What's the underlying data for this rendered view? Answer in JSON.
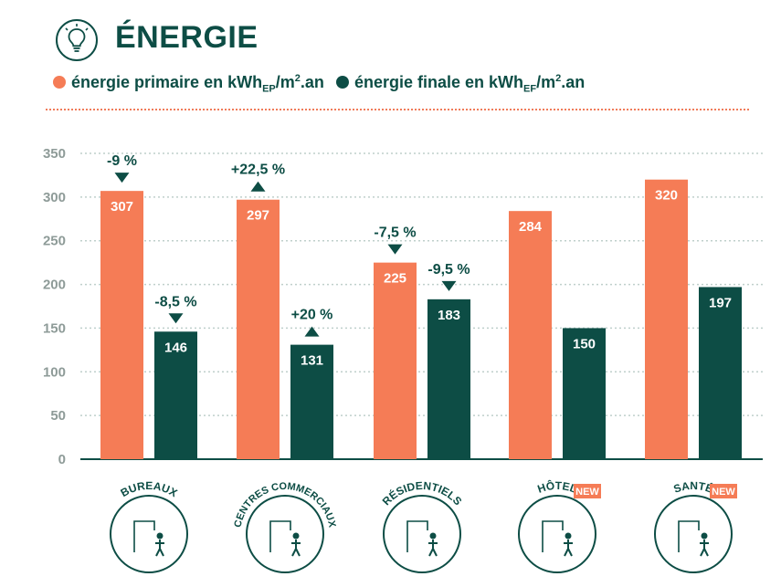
{
  "header": {
    "title": "ÉNERGIE",
    "icon": "lightbulb-icon"
  },
  "legend": {
    "primary": {
      "text": "énergie primaire en kWh",
      "sub": "EP",
      "tail": "/m",
      "sup": "2",
      "end": ".an",
      "color": "#f57c56"
    },
    "final": {
      "text": "énergie finale en kWh",
      "sub": "EF",
      "tail": "/m",
      "sup": "2",
      "end": ".an",
      "color": "#0d4d45"
    }
  },
  "chart_data": {
    "type": "bar",
    "categories": [
      "BUREAUX",
      "CENTRES COMMERCIAUX",
      "RÉSIDENTIELS",
      "HÔTEL",
      "SANTÉ"
    ],
    "badges": [
      "",
      "",
      "",
      "NEW",
      "NEW"
    ],
    "series": [
      {
        "name": "énergie primaire en kWhEP/m2.an",
        "values": [
          307,
          297,
          225,
          284,
          320
        ],
        "color": "#f57c56"
      },
      {
        "name": "énergie finale en kWhEF/m2.an",
        "values": [
          146,
          131,
          183,
          150,
          197
        ],
        "color": "#0d4d45"
      }
    ],
    "changes": [
      [
        "-9 %",
        "+22,5 %",
        "-7,5 %",
        "",
        ""
      ],
      [
        "-8,5 %",
        "+20 %",
        "-9,5 %",
        "",
        ""
      ]
    ],
    "direction": [
      [
        "down",
        "up",
        "down",
        "",
        ""
      ],
      [
        "down",
        "up",
        "down",
        "",
        ""
      ]
    ],
    "yticks": [
      0,
      50,
      100,
      150,
      200,
      250,
      300,
      350
    ],
    "ylim": [
      0,
      350
    ],
    "grid": true
  }
}
